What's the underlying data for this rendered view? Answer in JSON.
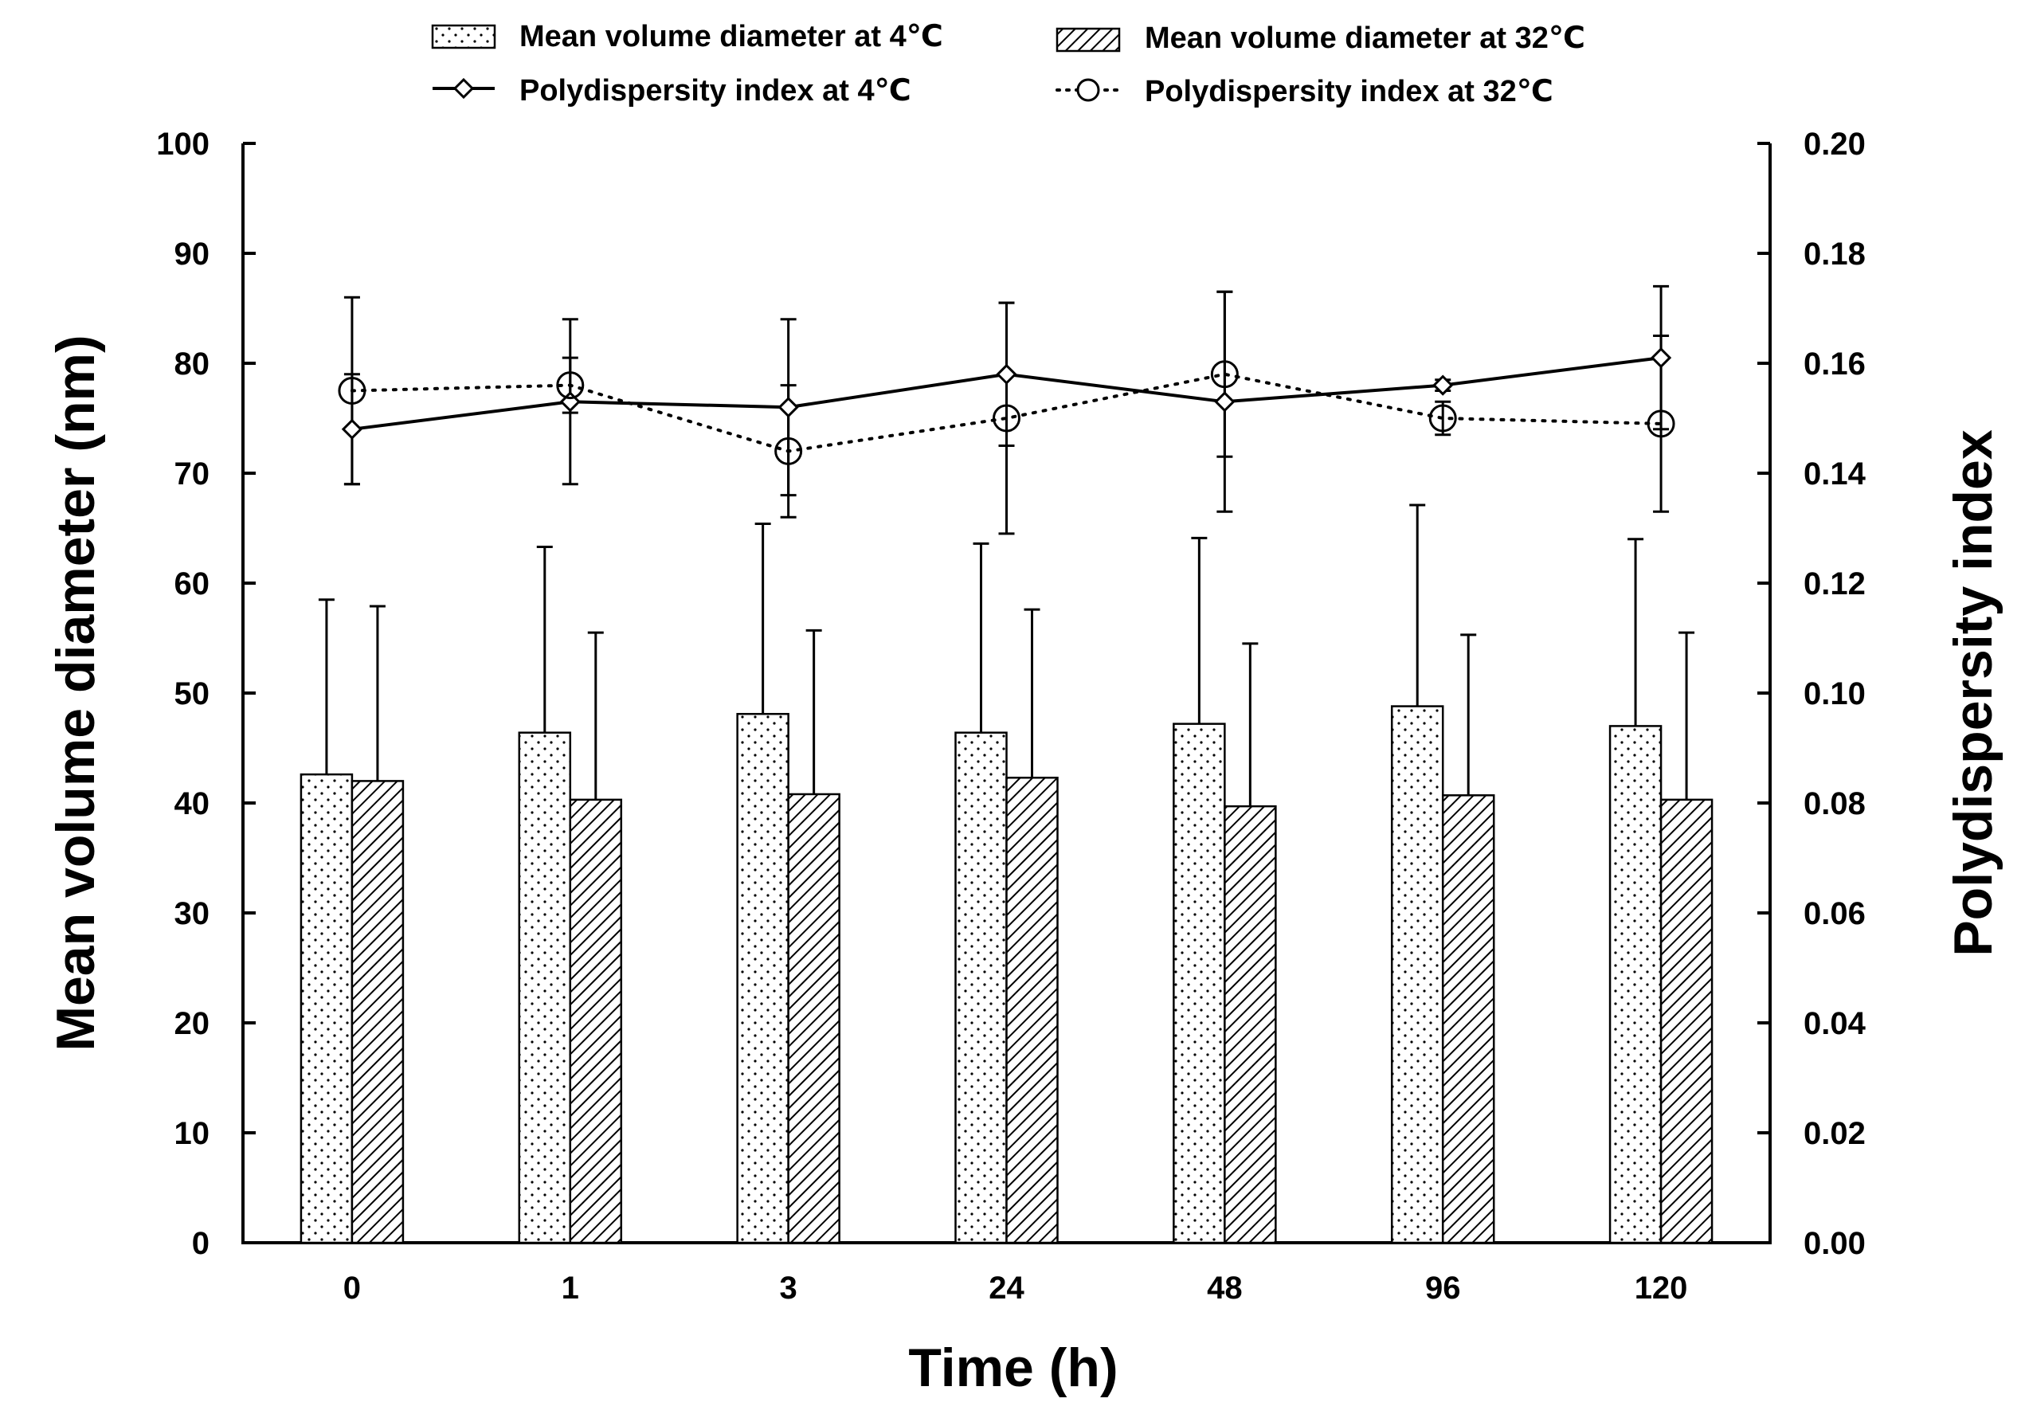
{
  "chart_data": {
    "type": "bar",
    "title": "",
    "xlabel": "Time (h)",
    "ylabel": "Mean volume diameter (nm)",
    "y2label": "Polydispersity index",
    "categories": [
      "0",
      "1",
      "3",
      "24",
      "48",
      "96",
      "120"
    ],
    "ylim": [
      0,
      100
    ],
    "y2lim": [
      0,
      0.2
    ],
    "yticks": [
      "0",
      "10",
      "20",
      "30",
      "40",
      "50",
      "60",
      "70",
      "80",
      "90",
      "100"
    ],
    "y2ticks": [
      "0.00",
      "0.02",
      "0.04",
      "0.06",
      "0.08",
      "0.10",
      "0.12",
      "0.14",
      "0.16",
      "0.18",
      "0.20"
    ],
    "grid": false,
    "legend_position": "top",
    "series": [
      {
        "name": "Mean volume diameter at 4℃",
        "kind": "bar",
        "pattern": "dots",
        "axis": "left",
        "values": [
          42.6,
          46.4,
          48.1,
          46.4,
          47.2,
          48.8,
          47.0
        ],
        "errors": [
          15.9,
          16.9,
          17.3,
          17.2,
          16.9,
          18.3,
          17.0
        ]
      },
      {
        "name": "Mean volume diameter at 32℃",
        "kind": "bar",
        "pattern": "hatch",
        "axis": "left",
        "values": [
          42.0,
          40.3,
          40.8,
          42.3,
          39.7,
          40.7,
          40.3
        ],
        "errors": [
          15.9,
          15.2,
          14.9,
          15.3,
          14.8,
          14.6,
          15.2
        ]
      },
      {
        "name": "Polydispersity index at 4℃",
        "kind": "line",
        "style": "solid",
        "marker": "diamond",
        "axis": "right",
        "values": [
          0.148,
          0.153,
          0.152,
          0.158,
          0.153,
          0.156,
          0.161
        ],
        "errors": [
          0.01,
          0.015,
          0.016,
          0.013,
          0.02,
          0.001,
          0.013
        ]
      },
      {
        "name": "Polydispersity index at 32℃",
        "kind": "line",
        "style": "dotted",
        "marker": "circle",
        "axis": "right",
        "values": [
          0.155,
          0.156,
          0.144,
          0.15,
          0.158,
          0.15,
          0.149
        ],
        "errors": [
          0.017,
          0.005,
          0.012,
          0.021,
          0.015,
          0.003,
          0.016
        ]
      }
    ]
  }
}
